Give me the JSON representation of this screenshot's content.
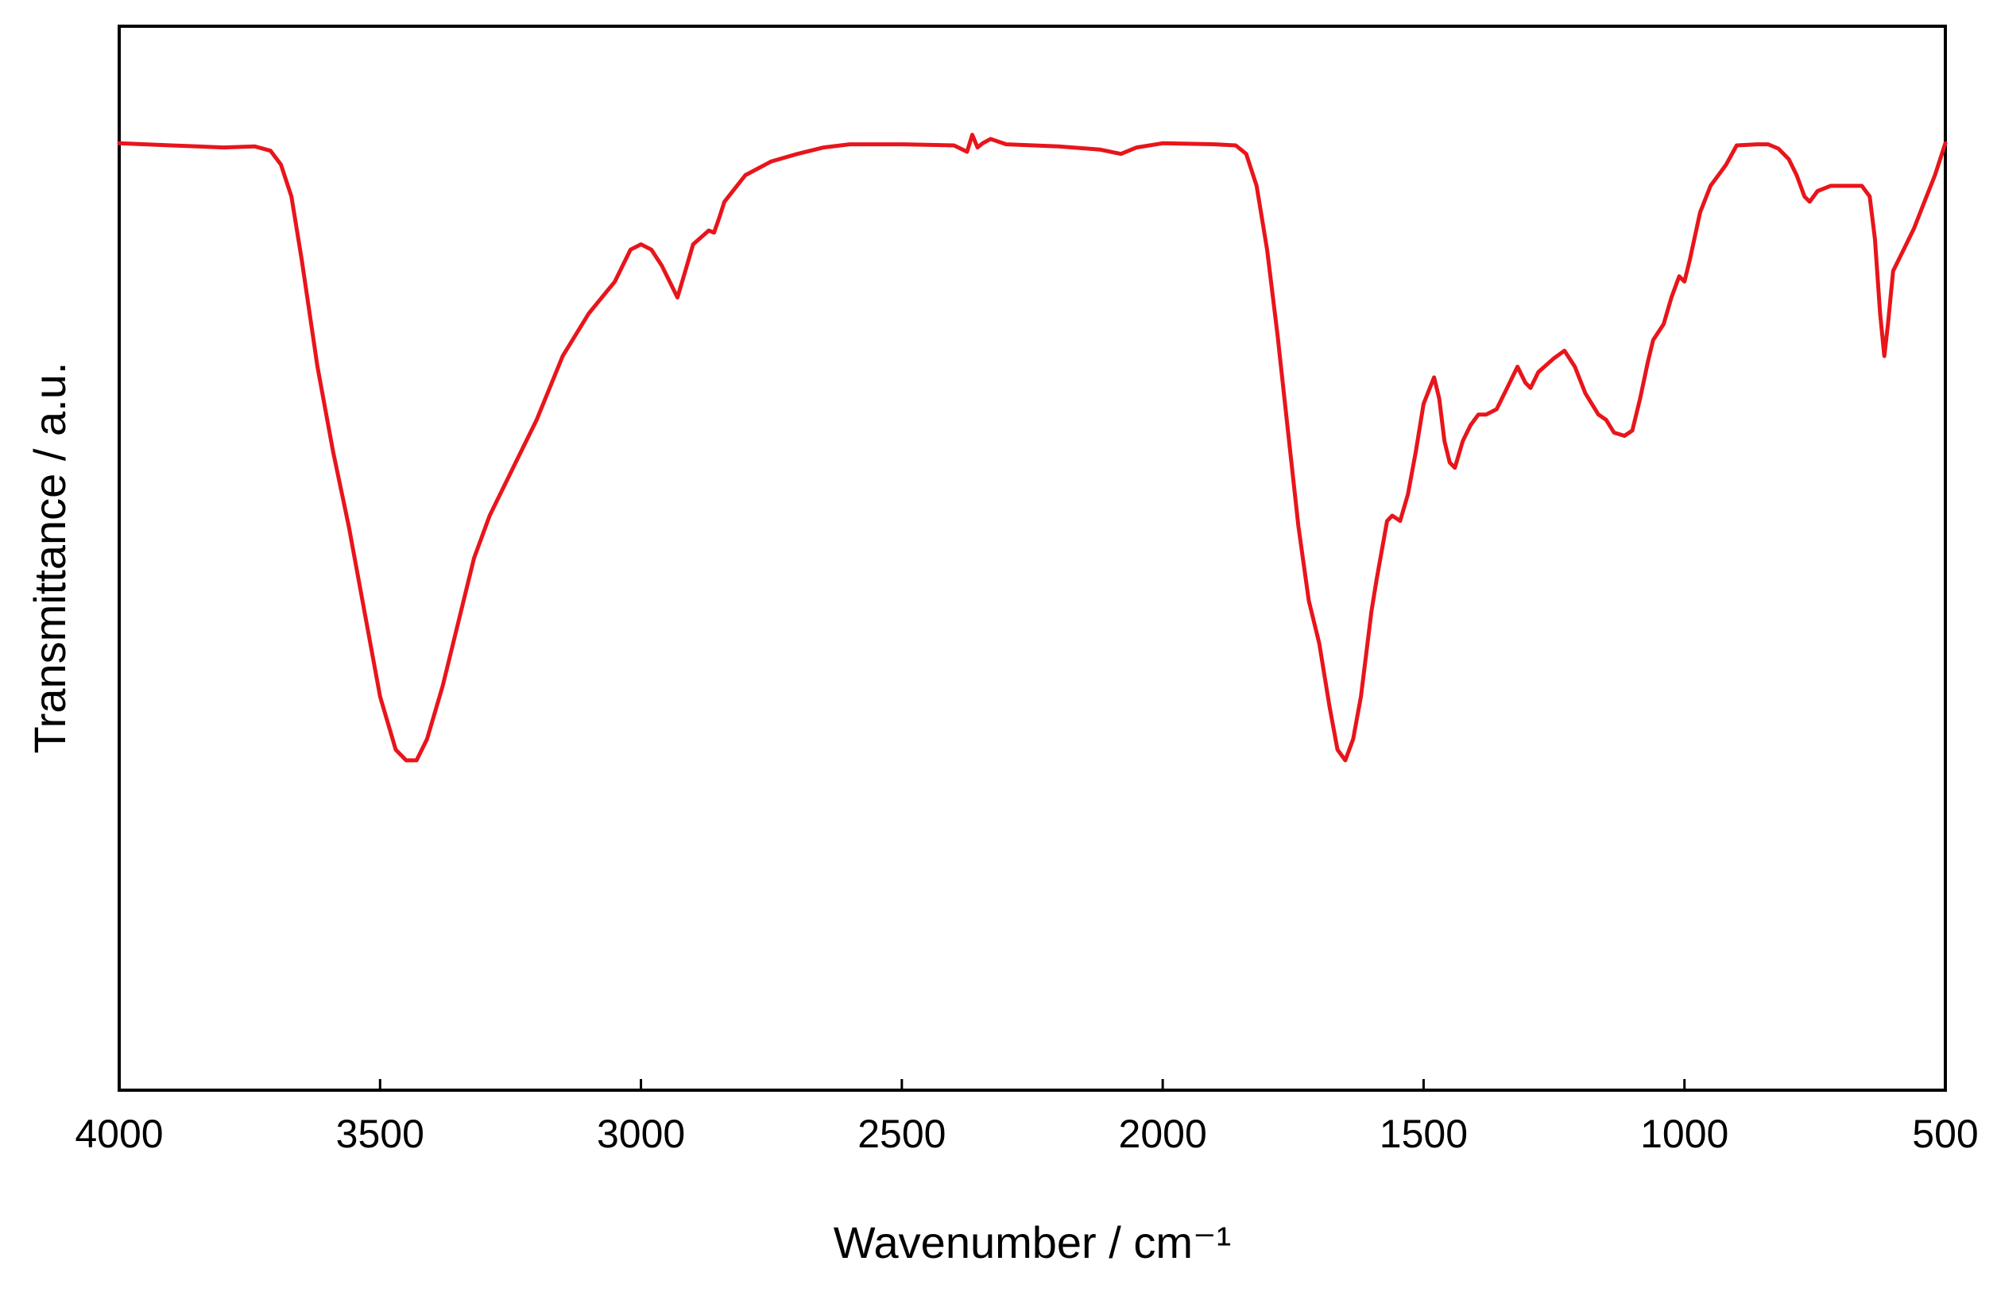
{
  "chart_data": {
    "type": "line",
    "title": "",
    "xlabel": "Wavenumber / cm⁻¹",
    "ylabel": "Transmittance / a.u.",
    "xlim": [
      4000,
      500
    ],
    "x_reversed": true,
    "ylim": [
      0,
      100
    ],
    "y_ticks_shown": false,
    "grid": false,
    "legend": "none",
    "x_ticks": [
      4000,
      3500,
      3000,
      2500,
      2000,
      1500,
      1000,
      500
    ],
    "x_tick_labels": [
      "4000",
      "3500",
      "3000",
      "2500",
      "2000",
      "1500",
      "1000",
      "500"
    ],
    "series": [
      {
        "color": "#e8151b",
        "points": [
          [
            4000,
            89.0
          ],
          [
            3900,
            88.8
          ],
          [
            3800,
            88.6
          ],
          [
            3740,
            88.7
          ],
          [
            3710,
            88.3
          ],
          [
            3690,
            87.0
          ],
          [
            3670,
            84.0
          ],
          [
            3650,
            78.0
          ],
          [
            3620,
            68.0
          ],
          [
            3590,
            60.0
          ],
          [
            3560,
            53.0
          ],
          [
            3530,
            45.0
          ],
          [
            3500,
            37.0
          ],
          [
            3470,
            32.0
          ],
          [
            3450,
            31.0
          ],
          [
            3430,
            31.0
          ],
          [
            3410,
            33.0
          ],
          [
            3380,
            38.0
          ],
          [
            3350,
            44.0
          ],
          [
            3320,
            50.0
          ],
          [
            3290,
            54.0
          ],
          [
            3250,
            58.0
          ],
          [
            3200,
            63.0
          ],
          [
            3150,
            69.0
          ],
          [
            3100,
            73.0
          ],
          [
            3050,
            76.0
          ],
          [
            3020,
            79.0
          ],
          [
            3000,
            79.5
          ],
          [
            2980,
            79.0
          ],
          [
            2960,
            77.5
          ],
          [
            2945,
            76.0
          ],
          [
            2930,
            74.5
          ],
          [
            2915,
            77.0
          ],
          [
            2900,
            79.5
          ],
          [
            2870,
            80.8
          ],
          [
            2860,
            80.6
          ],
          [
            2850,
            82.0
          ],
          [
            2840,
            83.5
          ],
          [
            2800,
            86.0
          ],
          [
            2750,
            87.3
          ],
          [
            2700,
            88.0
          ],
          [
            2650,
            88.6
          ],
          [
            2600,
            88.9
          ],
          [
            2500,
            88.9
          ],
          [
            2400,
            88.8
          ],
          [
            2375,
            88.2
          ],
          [
            2365,
            89.8
          ],
          [
            2355,
            88.6
          ],
          [
            2345,
            89.0
          ],
          [
            2330,
            89.4
          ],
          [
            2300,
            88.9
          ],
          [
            2200,
            88.7
          ],
          [
            2120,
            88.4
          ],
          [
            2080,
            88.0
          ],
          [
            2050,
            88.6
          ],
          [
            2000,
            89.0
          ],
          [
            1900,
            88.9
          ],
          [
            1860,
            88.8
          ],
          [
            1840,
            88.0
          ],
          [
            1820,
            85.0
          ],
          [
            1800,
            79.0
          ],
          [
            1780,
            71.0
          ],
          [
            1760,
            62.0
          ],
          [
            1740,
            53.0
          ],
          [
            1720,
            46.0
          ],
          [
            1700,
            42.0
          ],
          [
            1680,
            36.0
          ],
          [
            1665,
            32.0
          ],
          [
            1650,
            31.0
          ],
          [
            1635,
            33.0
          ],
          [
            1620,
            37.0
          ],
          [
            1600,
            45.0
          ],
          [
            1590,
            48.0
          ],
          [
            1570,
            53.5
          ],
          [
            1560,
            54.0
          ],
          [
            1545,
            53.5
          ],
          [
            1530,
            56.0
          ],
          [
            1515,
            60.0
          ],
          [
            1500,
            64.5
          ],
          [
            1480,
            67.0
          ],
          [
            1470,
            65.0
          ],
          [
            1460,
            61.0
          ],
          [
            1450,
            59.0
          ],
          [
            1440,
            58.5
          ],
          [
            1425,
            61.0
          ],
          [
            1410,
            62.5
          ],
          [
            1395,
            63.5
          ],
          [
            1380,
            63.5
          ],
          [
            1360,
            64.0
          ],
          [
            1340,
            66.0
          ],
          [
            1320,
            68.0
          ],
          [
            1305,
            66.5
          ],
          [
            1295,
            66.0
          ],
          [
            1280,
            67.5
          ],
          [
            1250,
            68.8
          ],
          [
            1230,
            69.5
          ],
          [
            1210,
            68.0
          ],
          [
            1190,
            65.5
          ],
          [
            1165,
            63.5
          ],
          [
            1150,
            63.0
          ],
          [
            1135,
            61.8
          ],
          [
            1115,
            61.5
          ],
          [
            1100,
            62.0
          ],
          [
            1085,
            65.0
          ],
          [
            1070,
            68.5
          ],
          [
            1060,
            70.5
          ],
          [
            1040,
            72.0
          ],
          [
            1025,
            74.5
          ],
          [
            1010,
            76.5
          ],
          [
            1000,
            76.0
          ],
          [
            990,
            78.0
          ],
          [
            970,
            82.5
          ],
          [
            950,
            85.0
          ],
          [
            920,
            87.0
          ],
          [
            900,
            88.8
          ],
          [
            860,
            88.9
          ],
          [
            840,
            88.9
          ],
          [
            820,
            88.5
          ],
          [
            800,
            87.5
          ],
          [
            785,
            86.0
          ],
          [
            770,
            84.0
          ],
          [
            760,
            83.5
          ],
          [
            745,
            84.5
          ],
          [
            720,
            85.0
          ],
          [
            690,
            85.0
          ],
          [
            660,
            85.0
          ],
          [
            645,
            84.0
          ],
          [
            635,
            80.0
          ],
          [
            625,
            73.0
          ],
          [
            617,
            69.0
          ],
          [
            610,
            72.0
          ],
          [
            600,
            77.0
          ],
          [
            580,
            79.0
          ],
          [
            560,
            81.0
          ],
          [
            540,
            83.5
          ],
          [
            520,
            86.0
          ],
          [
            500,
            89.0
          ]
        ]
      }
    ]
  }
}
